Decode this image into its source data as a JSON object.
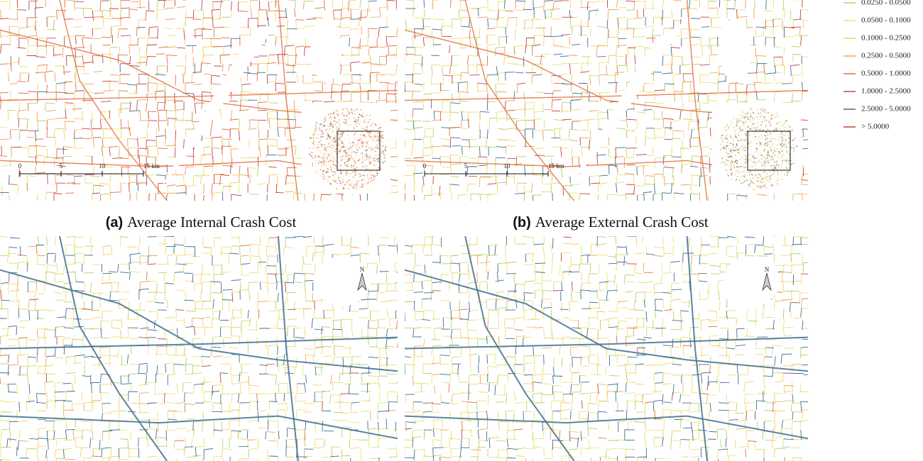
{
  "legend": [
    {
      "label": "0.0250 - 0.0500",
      "color": "#b9cf6e"
    },
    {
      "label": "0.0500 - 0.1000",
      "color": "#e6e27a"
    },
    {
      "label": "0.1000 - 0.2500",
      "color": "#f1d36a"
    },
    {
      "label": "0.2500 - 0.5000",
      "color": "#eea15a"
    },
    {
      "label": "0.5000 - 1.0000",
      "color": "#e0703f"
    },
    {
      "label": "1.0000 - 2.5000",
      "color": "#b5485e"
    },
    {
      "label": "2.5000 - 5.0000",
      "color": "#3f6f8e"
    },
    {
      "label": "> 5.0000",
      "color": "#c8412f"
    }
  ],
  "captions": [
    {
      "label": "(a)",
      "text": "Average Internal Crash Cost"
    },
    {
      "label": "(b)",
      "text": "Average External Crash Cost"
    }
  ],
  "scale_bar": [
    "0",
    "5",
    "10",
    "15 km"
  ],
  "north": "N"
}
